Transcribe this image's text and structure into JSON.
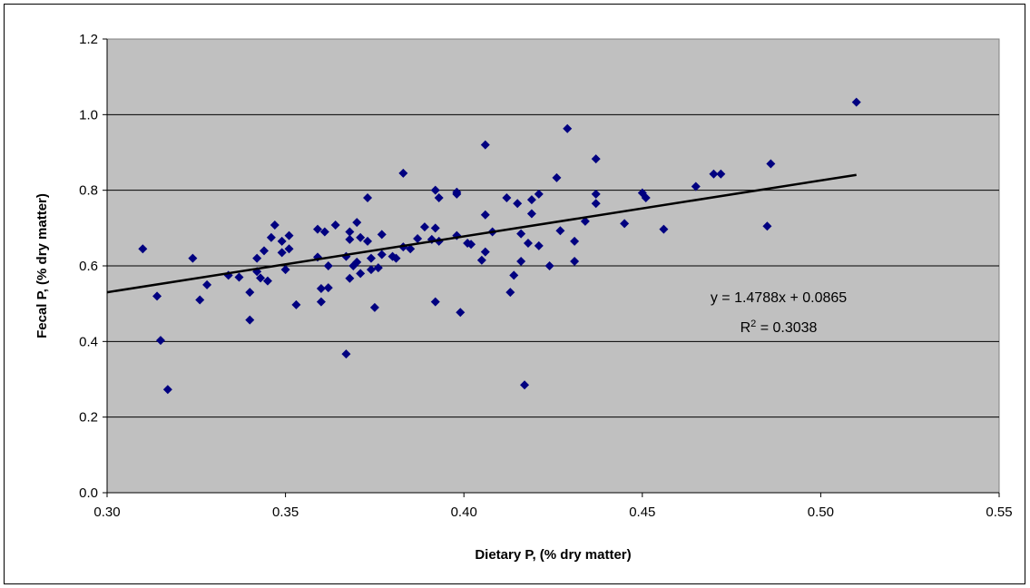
{
  "chart_data": {
    "type": "scatter",
    "xlabel": "Dietary P, (% dry matter)",
    "ylabel": "Fecal P, (% dry matter)",
    "xlim": [
      0.3,
      0.55
    ],
    "ylim": [
      0.0,
      1.2
    ],
    "x_ticks": [
      "0.30",
      "0.35",
      "0.40",
      "0.45",
      "0.50",
      "0.55"
    ],
    "y_ticks": [
      "0.0",
      "0.2",
      "0.4",
      "0.6",
      "0.8",
      "1.0",
      "1.2"
    ],
    "grid": "horizontal",
    "legend": "none",
    "colors": {
      "plot_background": "#c0c0c0",
      "marker": "#000080",
      "trendline": "#000000"
    },
    "trendline": {
      "slope": 1.4788,
      "intercept": 0.0865,
      "x_range": [
        0.3,
        0.51
      ],
      "equation_text": "y = 1.4788x + 0.0865",
      "r2_prefix": "R",
      "r2_sup": "2",
      "r2_suffix": " = 0.3038"
    },
    "points": [
      [
        0.31,
        0.645
      ],
      [
        0.314,
        0.52
      ],
      [
        0.315,
        0.403
      ],
      [
        0.317,
        0.273
      ],
      [
        0.324,
        0.62
      ],
      [
        0.326,
        0.51
      ],
      [
        0.328,
        0.55
      ],
      [
        0.334,
        0.575
      ],
      [
        0.337,
        0.57
      ],
      [
        0.34,
        0.53
      ],
      [
        0.34,
        0.457
      ],
      [
        0.342,
        0.585
      ],
      [
        0.342,
        0.62
      ],
      [
        0.343,
        0.568
      ],
      [
        0.344,
        0.64
      ],
      [
        0.345,
        0.56
      ],
      [
        0.346,
        0.675
      ],
      [
        0.347,
        0.708
      ],
      [
        0.349,
        0.665
      ],
      [
        0.349,
        0.635
      ],
      [
        0.35,
        0.59
      ],
      [
        0.351,
        0.68
      ],
      [
        0.351,
        0.645
      ],
      [
        0.353,
        0.497
      ],
      [
        0.359,
        0.697
      ],
      [
        0.359,
        0.623
      ],
      [
        0.36,
        0.54
      ],
      [
        0.36,
        0.505
      ],
      [
        0.361,
        0.69
      ],
      [
        0.362,
        0.542
      ],
      [
        0.362,
        0.6
      ],
      [
        0.364,
        0.708
      ],
      [
        0.367,
        0.625
      ],
      [
        0.367,
        0.367
      ],
      [
        0.368,
        0.567
      ],
      [
        0.368,
        0.69
      ],
      [
        0.368,
        0.67
      ],
      [
        0.369,
        0.6
      ],
      [
        0.37,
        0.715
      ],
      [
        0.37,
        0.61
      ],
      [
        0.371,
        0.58
      ],
      [
        0.371,
        0.675
      ],
      [
        0.373,
        0.78
      ],
      [
        0.373,
        0.665
      ],
      [
        0.374,
        0.62
      ],
      [
        0.374,
        0.59
      ],
      [
        0.375,
        0.49
      ],
      [
        0.376,
        0.595
      ],
      [
        0.377,
        0.63
      ],
      [
        0.377,
        0.683
      ],
      [
        0.38,
        0.625
      ],
      [
        0.381,
        0.62
      ],
      [
        0.383,
        0.845
      ],
      [
        0.383,
        0.65
      ],
      [
        0.385,
        0.645
      ],
      [
        0.387,
        0.672
      ],
      [
        0.389,
        0.703
      ],
      [
        0.391,
        0.67
      ],
      [
        0.392,
        0.7
      ],
      [
        0.392,
        0.505
      ],
      [
        0.392,
        0.8
      ],
      [
        0.393,
        0.78
      ],
      [
        0.393,
        0.665
      ],
      [
        0.398,
        0.795
      ],
      [
        0.398,
        0.68
      ],
      [
        0.398,
        0.79
      ],
      [
        0.399,
        0.477
      ],
      [
        0.401,
        0.66
      ],
      [
        0.402,
        0.657
      ],
      [
        0.405,
        0.615
      ],
      [
        0.406,
        0.637
      ],
      [
        0.406,
        0.735
      ],
      [
        0.406,
        0.92
      ],
      [
        0.408,
        0.69
      ],
      [
        0.412,
        0.78
      ],
      [
        0.413,
        0.53
      ],
      [
        0.414,
        0.575
      ],
      [
        0.415,
        0.765
      ],
      [
        0.416,
        0.685
      ],
      [
        0.416,
        0.612
      ],
      [
        0.417,
        0.285
      ],
      [
        0.418,
        0.66
      ],
      [
        0.419,
        0.775
      ],
      [
        0.419,
        0.738
      ],
      [
        0.421,
        0.79
      ],
      [
        0.421,
        0.653
      ],
      [
        0.424,
        0.6
      ],
      [
        0.426,
        0.833
      ],
      [
        0.427,
        0.693
      ],
      [
        0.429,
        0.963
      ],
      [
        0.431,
        0.612
      ],
      [
        0.431,
        0.665
      ],
      [
        0.434,
        0.718
      ],
      [
        0.437,
        0.883
      ],
      [
        0.437,
        0.765
      ],
      [
        0.437,
        0.79
      ],
      [
        0.445,
        0.712
      ],
      [
        0.45,
        0.793
      ],
      [
        0.451,
        0.78
      ],
      [
        0.456,
        0.697
      ],
      [
        0.465,
        0.81
      ],
      [
        0.47,
        0.843
      ],
      [
        0.472,
        0.843
      ],
      [
        0.485,
        0.705
      ],
      [
        0.486,
        0.87
      ],
      [
        0.51,
        1.033
      ]
    ]
  }
}
